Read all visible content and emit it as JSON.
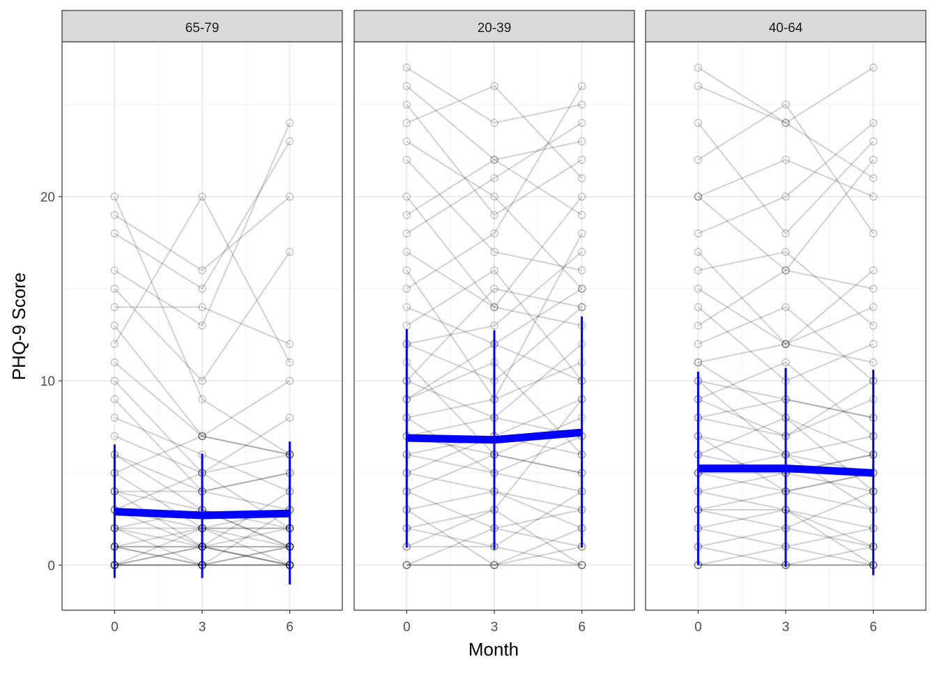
{
  "chart_data": {
    "type": "line",
    "xlabel": "Month",
    "ylabel": "PHQ-9 Score",
    "x_ticks": [
      0,
      3,
      6
    ],
    "y_ticks": [
      0,
      10,
      20
    ],
    "xlim": [
      -1.8,
      7.8
    ],
    "ylim": [
      -2.45,
      28.4
    ],
    "grid": true,
    "mean_color": "#0000ff",
    "individual_color": "#000000",
    "facets": [
      {
        "label": "65-79",
        "mean": {
          "x": [
            0,
            3,
            6
          ],
          "y": [
            2.9,
            2.7,
            2.8
          ]
        },
        "error_bars": [
          [
            -0.7,
            6.55
          ],
          [
            -0.7,
            6.05
          ],
          [
            -1.05,
            6.7
          ]
        ],
        "trajectories": [
          [
            0,
            0,
            0
          ],
          [
            1,
            0,
            0
          ],
          [
            0,
            1,
            0
          ],
          [
            2,
            1,
            1
          ],
          [
            3,
            2,
            2
          ],
          [
            0,
            0,
            1
          ],
          [
            1,
            1,
            2
          ],
          [
            4,
            3,
            2
          ],
          [
            5,
            2,
            3
          ],
          [
            2,
            3,
            1
          ],
          [
            0,
            2,
            0
          ],
          [
            6,
            4,
            5
          ],
          [
            3,
            5,
            2
          ],
          [
            1,
            0,
            3
          ],
          [
            7,
            5,
            6
          ],
          [
            9,
            4,
            3
          ],
          [
            11,
            7,
            6
          ],
          [
            2,
            0,
            1
          ],
          [
            8,
            6,
            4
          ],
          [
            4,
            1,
            0
          ],
          [
            0,
            0,
            0
          ],
          [
            1,
            2,
            1
          ],
          [
            3,
            1,
            4
          ],
          [
            5,
            7,
            6
          ],
          [
            10,
            5,
            8
          ],
          [
            14,
            14,
            12
          ],
          [
            15,
            10,
            17
          ],
          [
            20,
            9,
            6
          ],
          [
            12,
            20,
            11
          ],
          [
            16,
            13,
            24
          ],
          [
            2,
            2,
            2
          ],
          [
            0,
            1,
            1
          ],
          [
            6,
            3,
            1
          ],
          [
            13,
            7,
            10
          ],
          [
            18,
            15,
            23
          ],
          [
            19,
            16,
            20
          ],
          [
            1,
            1,
            0
          ],
          [
            4,
            4,
            5
          ]
        ]
      },
      {
        "label": "20-39",
        "mean": {
          "x": [
            0,
            3,
            6
          ],
          "y": [
            6.9,
            6.8,
            7.2
          ]
        },
        "error_bars": [
          [
            0.95,
            12.8
          ],
          [
            0.85,
            12.75
          ],
          [
            0.95,
            13.5
          ]
        ],
        "trajectories": [
          [
            0,
            0,
            0
          ],
          [
            7,
            6,
            8
          ],
          [
            12,
            10,
            14
          ],
          [
            3,
            4,
            2
          ],
          [
            17,
            14,
            20
          ],
          [
            27,
            24,
            25
          ],
          [
            5,
            7,
            9
          ],
          [
            9,
            11,
            6
          ],
          [
            1,
            3,
            0
          ],
          [
            14,
            12,
            15
          ],
          [
            22,
            17,
            16
          ],
          [
            6,
            5,
            7
          ],
          [
            2,
            1,
            4
          ],
          [
            10,
            8,
            12
          ],
          [
            19,
            22,
            23
          ],
          [
            4,
            2,
            3
          ],
          [
            8,
            9,
            11
          ],
          [
            0,
            2,
            1
          ],
          [
            11,
            6,
            5
          ],
          [
            15,
            18,
            26
          ],
          [
            24,
            26,
            21
          ],
          [
            13,
            16,
            10
          ],
          [
            6,
            7,
            6
          ],
          [
            3,
            0,
            2
          ],
          [
            20,
            14,
            13
          ],
          [
            16,
            9,
            18
          ],
          [
            7,
            8,
            7
          ],
          [
            5,
            4,
            3
          ],
          [
            25,
            19,
            22
          ],
          [
            9,
            12,
            10
          ],
          [
            1,
            1,
            0
          ],
          [
            18,
            21,
            24
          ],
          [
            12,
            13,
            17
          ],
          [
            4,
            6,
            5
          ],
          [
            2,
            3,
            9
          ],
          [
            26,
            22,
            19
          ],
          [
            10,
            15,
            14
          ],
          [
            8,
            5,
            4
          ],
          [
            23,
            20,
            15
          ],
          [
            0,
            0,
            1
          ]
        ]
      },
      {
        "label": "40-64",
        "mean": {
          "x": [
            0,
            3,
            6
          ],
          "y": [
            5.25,
            5.25,
            5.0
          ]
        },
        "error_bars": [
          [
            0.0,
            10.5
          ],
          [
            -0.1,
            10.7
          ],
          [
            -0.55,
            10.6
          ]
        ],
        "trajectories": [
          [
            0,
            0,
            0
          ],
          [
            5,
            5,
            4
          ],
          [
            10,
            9,
            8
          ],
          [
            3,
            4,
            3
          ],
          [
            20,
            16,
            22
          ],
          [
            27,
            24,
            27
          ],
          [
            7,
            6,
            5
          ],
          [
            2,
            3,
            1
          ],
          [
            12,
            14,
            10
          ],
          [
            4,
            3,
            2
          ],
          [
            8,
            7,
            9
          ],
          [
            1,
            0,
            0
          ],
          [
            15,
            12,
            14
          ],
          [
            6,
            5,
            6
          ],
          [
            18,
            20,
            24
          ],
          [
            9,
            11,
            7
          ],
          [
            0,
            1,
            0
          ],
          [
            11,
            8,
            6
          ],
          [
            3,
            2,
            4
          ],
          [
            26,
            24,
            21
          ],
          [
            5,
            6,
            3
          ],
          [
            14,
            10,
            12
          ],
          [
            2,
            1,
            2
          ],
          [
            20,
            22,
            20
          ],
          [
            7,
            4,
            5
          ],
          [
            13,
            16,
            15
          ],
          [
            1,
            2,
            1
          ],
          [
            9,
            7,
            10
          ],
          [
            4,
            5,
            6
          ],
          [
            17,
            12,
            16
          ],
          [
            6,
            8,
            4
          ],
          [
            10,
            6,
            7
          ],
          [
            24,
            18,
            23
          ],
          [
            0,
            0,
            1
          ],
          [
            16,
            17,
            13
          ],
          [
            8,
            9,
            8
          ],
          [
            3,
            3,
            0
          ],
          [
            22,
            25,
            18
          ],
          [
            5,
            4,
            5
          ],
          [
            11,
            12,
            11
          ]
        ]
      }
    ]
  }
}
